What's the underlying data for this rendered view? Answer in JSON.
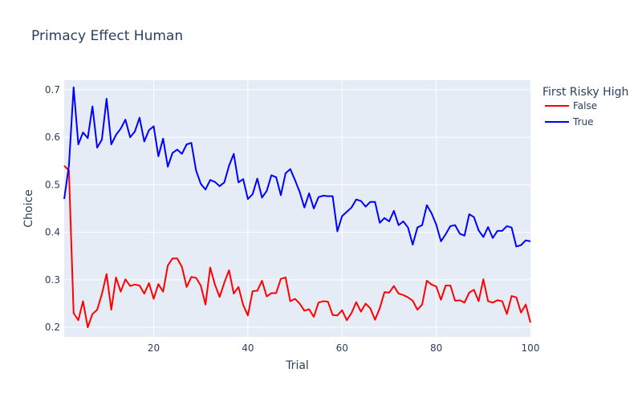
{
  "chart_data": {
    "type": "line",
    "title": "Primacy Effect Human",
    "xlabel": "Trial",
    "ylabel": "Choice",
    "xlim": [
      1,
      100
    ],
    "ylim": [
      0.18,
      0.72
    ],
    "x_ticks": [
      20,
      40,
      60,
      80,
      100
    ],
    "y_ticks": [
      0.2,
      0.3,
      0.4,
      0.5,
      0.6,
      0.7
    ],
    "grid": true,
    "legend": {
      "title": "First Risky High",
      "placement": "top-right"
    },
    "x": [
      1,
      2,
      3,
      4,
      5,
      6,
      7,
      8,
      9,
      10,
      11,
      12,
      13,
      14,
      15,
      16,
      17,
      18,
      19,
      20,
      21,
      22,
      23,
      24,
      25,
      26,
      27,
      28,
      29,
      30,
      31,
      32,
      33,
      34,
      35,
      36,
      37,
      38,
      39,
      40,
      41,
      42,
      43,
      44,
      45,
      46,
      47,
      48,
      49,
      50,
      51,
      52,
      53,
      54,
      55,
      56,
      57,
      58,
      59,
      60,
      61,
      62,
      63,
      64,
      65,
      66,
      67,
      68,
      69,
      70,
      71,
      72,
      73,
      74,
      75,
      76,
      77,
      78,
      79,
      80,
      81,
      82,
      83,
      84,
      85,
      86,
      87,
      88,
      89,
      90,
      91,
      92,
      93,
      94,
      95,
      96,
      97,
      98,
      99,
      100
    ],
    "series": [
      {
        "name": "False",
        "color": "#ff0000",
        "values": [
          0.54,
          0.53,
          0.23,
          0.215,
          0.255,
          0.2,
          0.228,
          0.237,
          0.27,
          0.312,
          0.237,
          0.305,
          0.275,
          0.301,
          0.287,
          0.29,
          0.288,
          0.271,
          0.293,
          0.26,
          0.291,
          0.275,
          0.33,
          0.345,
          0.345,
          0.327,
          0.285,
          0.306,
          0.304,
          0.288,
          0.248,
          0.326,
          0.29,
          0.264,
          0.294,
          0.32,
          0.271,
          0.285,
          0.247,
          0.225,
          0.276,
          0.277,
          0.298,
          0.265,
          0.272,
          0.272,
          0.302,
          0.305,
          0.255,
          0.26,
          0.25,
          0.235,
          0.238,
          0.222,
          0.252,
          0.255,
          0.254,
          0.226,
          0.225,
          0.236,
          0.215,
          0.23,
          0.253,
          0.233,
          0.25,
          0.24,
          0.216,
          0.24,
          0.274,
          0.273,
          0.287,
          0.271,
          0.268,
          0.263,
          0.256,
          0.237,
          0.248,
          0.298,
          0.29,
          0.286,
          0.258,
          0.288,
          0.288,
          0.256,
          0.257,
          0.252,
          0.273,
          0.279,
          0.255,
          0.301,
          0.255,
          0.252,
          0.257,
          0.255,
          0.228,
          0.266,
          0.263,
          0.231,
          0.248,
          0.21
        ]
      },
      {
        "name": "True",
        "color": "#0000ff",
        "values": [
          0.47,
          0.54,
          0.705,
          0.585,
          0.61,
          0.598,
          0.665,
          0.578,
          0.595,
          0.681,
          0.585,
          0.605,
          0.618,
          0.637,
          0.6,
          0.612,
          0.641,
          0.591,
          0.615,
          0.623,
          0.56,
          0.597,
          0.538,
          0.567,
          0.574,
          0.565,
          0.585,
          0.588,
          0.53,
          0.502,
          0.49,
          0.51,
          0.506,
          0.497,
          0.505,
          0.54,
          0.565,
          0.505,
          0.512,
          0.47,
          0.48,
          0.513,
          0.473,
          0.487,
          0.52,
          0.516,
          0.478,
          0.524,
          0.533,
          0.51,
          0.485,
          0.452,
          0.482,
          0.45,
          0.474,
          0.477,
          0.476,
          0.476,
          0.402,
          0.434,
          0.443,
          0.452,
          0.469,
          0.466,
          0.454,
          0.464,
          0.464,
          0.42,
          0.43,
          0.423,
          0.445,
          0.415,
          0.423,
          0.41,
          0.374,
          0.41,
          0.415,
          0.457,
          0.44,
          0.416,
          0.381,
          0.396,
          0.413,
          0.415,
          0.397,
          0.393,
          0.438,
          0.432,
          0.404,
          0.39,
          0.411,
          0.388,
          0.403,
          0.403,
          0.413,
          0.41,
          0.37,
          0.373,
          0.383,
          0.381
        ]
      }
    ]
  }
}
